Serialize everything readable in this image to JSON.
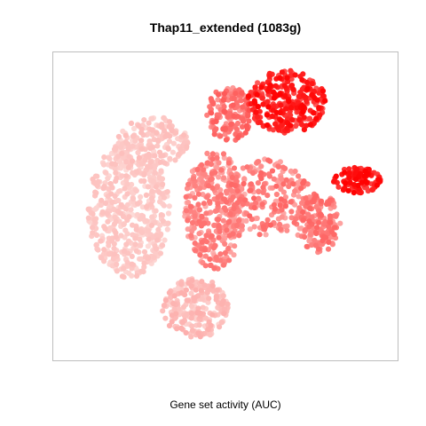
{
  "chart_data": {
    "type": "scatter",
    "title": "Thap11_extended (1083g)",
    "xlabel": "Gene set activity (AUC)",
    "ylabel": "",
    "grid": false,
    "legend": "none",
    "color_scale": {
      "low": "#fde0dd",
      "high": "#ff0000",
      "encodes": "Gene set activity (AUC), relative 0-1"
    },
    "clusters": [
      {
        "name": "left-large-pale",
        "x": [
          18,
          40
        ],
        "y": [
          -12,
          20
        ],
        "n": 520,
        "activity": [
          0.02,
          0.14
        ]
      },
      {
        "name": "left-upper-pale",
        "x": [
          25,
          45
        ],
        "y": [
          14,
          26
        ],
        "n": 160,
        "activity": [
          0.03,
          0.16
        ]
      },
      {
        "name": "bottom-tail-pale",
        "x": [
          38,
          56
        ],
        "y": [
          -26,
          -12
        ],
        "n": 230,
        "activity": [
          0.05,
          0.22
        ]
      },
      {
        "name": "center-column-mid",
        "x": [
          44,
          60
        ],
        "y": [
          -10,
          18
        ],
        "n": 360,
        "activity": [
          0.18,
          0.5
        ]
      },
      {
        "name": "center-right-mid",
        "x": [
          55,
          78
        ],
        "y": [
          -2,
          16
        ],
        "n": 220,
        "activity": [
          0.2,
          0.55
        ]
      },
      {
        "name": "top-center-mid",
        "x": [
          50,
          62
        ],
        "y": [
          20,
          33
        ],
        "n": 150,
        "activity": [
          0.3,
          0.6
        ]
      },
      {
        "name": "top-right-high",
        "x": [
          61,
          82
        ],
        "y": [
          22,
          37
        ],
        "n": 320,
        "activity": [
          0.55,
          1.0
        ]
      },
      {
        "name": "right-lower-mid",
        "x": [
          74,
          86
        ],
        "y": [
          -6,
          8
        ],
        "n": 170,
        "activity": [
          0.25,
          0.55
        ]
      },
      {
        "name": "far-right-high",
        "x": [
          84,
          97
        ],
        "y": [
          8,
          14
        ],
        "n": 110,
        "activity": [
          0.7,
          1.0
        ]
      }
    ],
    "xlim": [
      10,
      100
    ],
    "ylim": [
      -30,
      40
    ]
  }
}
